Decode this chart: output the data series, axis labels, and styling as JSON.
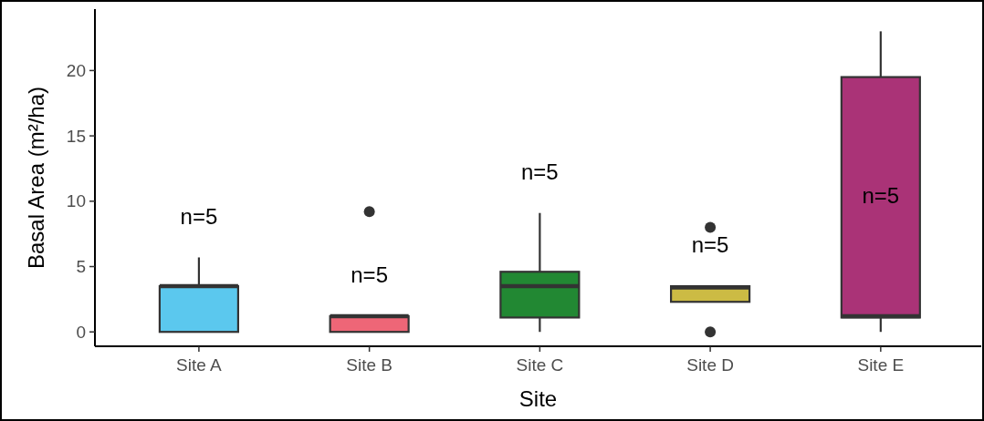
{
  "chart_data": {
    "type": "box",
    "xlabel": "Site",
    "ylabel": "Basal Area (m²/ha)",
    "categories": [
      "Site A",
      "Site B",
      "Site C",
      "Site D",
      "Site E"
    ],
    "colors": [
      "#5bc8ee",
      "#ee6677",
      "#228833",
      "#ccbb44",
      "#aa3377"
    ],
    "boxes": [
      {
        "low": 0,
        "q1": 0,
        "median": 3.5,
        "q3": 3.5,
        "high": 5.7
      },
      {
        "low": 0,
        "q1": 0,
        "median": 1.2,
        "q3": 1.2,
        "high": 1.2,
        "outliers": [
          9.2
        ]
      },
      {
        "low": 0,
        "q1": 1.1,
        "median": 3.5,
        "q3": 4.6,
        "high": 9.1
      },
      {
        "low": 2.3,
        "q1": 2.3,
        "median": 3.4,
        "q3": 3.5,
        "high": 3.5,
        "outliers": [
          8.0,
          0
        ]
      },
      {
        "low": 0,
        "q1": 1.1,
        "median": 1.2,
        "q3": 19.5,
        "high": 23
      }
    ],
    "annotations": [
      "n=5",
      "n=5",
      "n=5",
      "n=5",
      "n=5"
    ],
    "ylim": [
      -1.1,
      24.7
    ],
    "yticks": [
      0,
      5,
      10,
      15,
      20
    ],
    "grid": false
  }
}
